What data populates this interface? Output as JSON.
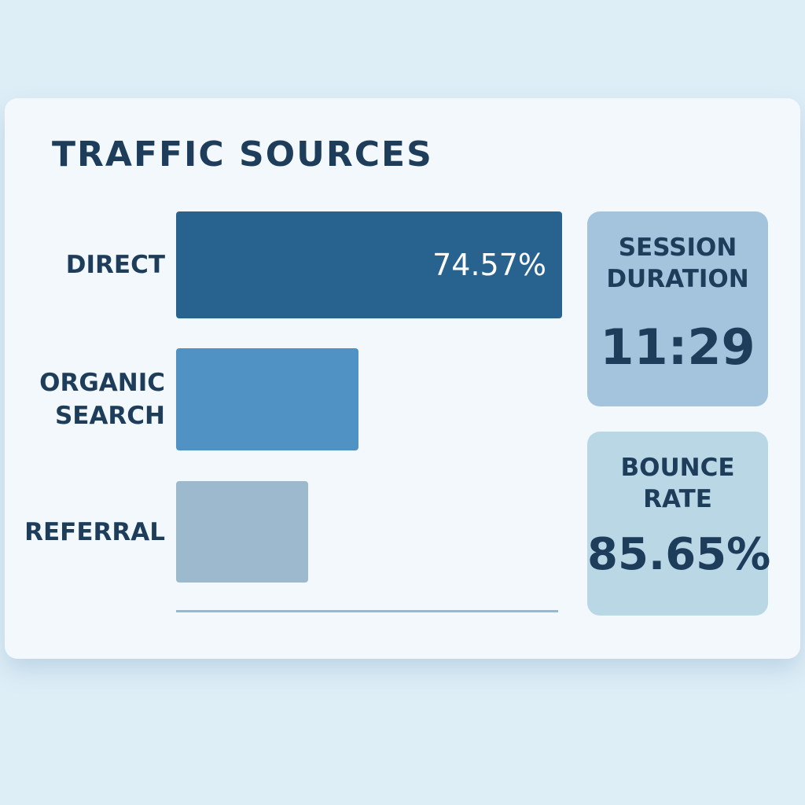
{
  "chart_data": {
    "type": "bar",
    "orientation": "horizontal",
    "title": "TRAFFIC SOURCES",
    "categories": [
      "DIRECT",
      "ORGANIC SEARCH",
      "REFERRAL"
    ],
    "values": [
      74.57,
      35.2,
      25.5
    ],
    "value_labels": [
      "74.57%",
      null,
      null
    ],
    "colors": [
      "#28628f",
      "#5092c4",
      "#9db9cd"
    ]
  },
  "kpis": [
    {
      "label": "SESSION DURATION",
      "value": "11:29",
      "color": "#a3c4dc"
    },
    {
      "label": "BOUNCE RATE",
      "value": "85.65%",
      "color": "#bad7e6"
    }
  ]
}
